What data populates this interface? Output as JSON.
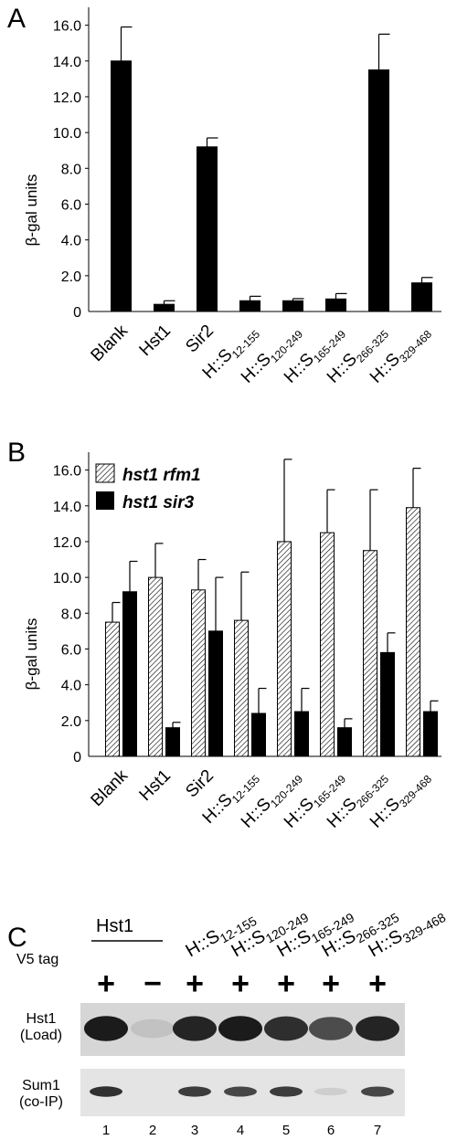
{
  "chart_data": [
    {
      "panel": "A",
      "type": "bar",
      "ylabel": "β-gal units",
      "ylim": [
        0,
        17
      ],
      "yticks": [
        "2.0",
        "4.0",
        "6.0",
        "8.0",
        "10.0",
        "12.0",
        "14.0",
        "16.0"
      ],
      "categories": [
        {
          "main": "Blank",
          "sub": ""
        },
        {
          "main": "Hst1",
          "sub": ""
        },
        {
          "main": "Sir2",
          "sub": ""
        },
        {
          "main": "H::S",
          "sub": "12-155"
        },
        {
          "main": "H::S",
          "sub": "120-249"
        },
        {
          "main": "H::S",
          "sub": "165-249"
        },
        {
          "main": "H::S",
          "sub": "266-325"
        },
        {
          "main": "H::S",
          "sub": "329-468"
        }
      ],
      "values": [
        14.0,
        0.4,
        9.2,
        0.6,
        0.6,
        0.7,
        13.5,
        1.6
      ],
      "errors": [
        1.9,
        0.2,
        0.5,
        0.25,
        0.12,
        0.3,
        2.0,
        0.3
      ]
    },
    {
      "panel": "B",
      "type": "bar",
      "ylabel": "β-gal units",
      "ylim": [
        0,
        17
      ],
      "yticks": [
        "2.0",
        "4.0",
        "6.0",
        "8.0",
        "10.0",
        "12.0",
        "14.0",
        "16.0"
      ],
      "categories": [
        {
          "main": "Blank",
          "sub": ""
        },
        {
          "main": "Hst1",
          "sub": ""
        },
        {
          "main": "Sir2",
          "sub": ""
        },
        {
          "main": "H::S",
          "sub": "12-155"
        },
        {
          "main": "H::S",
          "sub": "120-249"
        },
        {
          "main": "H::S",
          "sub": "165-249"
        },
        {
          "main": "H::S",
          "sub": "266-325"
        },
        {
          "main": "H::S",
          "sub": "329-468"
        }
      ],
      "series": [
        {
          "name": "hst1 rfm1",
          "pattern": "hatched",
          "values": [
            7.5,
            10.0,
            9.3,
            7.6,
            12.0,
            12.5,
            11.5,
            13.9
          ],
          "errors": [
            1.1,
            1.9,
            1.7,
            2.7,
            4.6,
            2.4,
            3.4,
            2.2
          ]
        },
        {
          "name": "hst1 sir3",
          "pattern": "solid",
          "values": [
            9.2,
            1.6,
            7.0,
            2.4,
            2.5,
            1.6,
            5.8,
            2.5
          ],
          "errors": [
            1.7,
            0.3,
            3.0,
            1.4,
            1.3,
            0.5,
            1.1,
            0.6
          ]
        }
      ]
    }
  ],
  "panels": {
    "a_letter": "A",
    "b_letter": "B",
    "c_letter": "C"
  },
  "blot": {
    "group_label": "Hst1",
    "header_labels": [
      {
        "main": "H::S",
        "sub": "12-155"
      },
      {
        "main": "H::S",
        "sub": "120-249"
      },
      {
        "main": "H::S",
        "sub": "165-249"
      },
      {
        "main": "H::S",
        "sub": "266-325"
      },
      {
        "main": "H::S",
        "sub": "329-468"
      }
    ],
    "tag_label": "V5 tag",
    "tag_signs": [
      "+",
      "−",
      "+",
      "+",
      "+",
      "+",
      "+"
    ],
    "row1_label_line1": "Hst1",
    "row1_label_line2": "(Load)",
    "row2_label_line1": "Sum1",
    "row2_label_line2": "(co-IP)",
    "lanes": [
      "1",
      "2",
      "3",
      "4",
      "5",
      "6",
      "7"
    ],
    "load_intensity": [
      0.95,
      0.1,
      0.9,
      0.95,
      0.85,
      0.7,
      0.9
    ],
    "coip_intensity": [
      0.85,
      0.0,
      0.8,
      0.75,
      0.8,
      0.1,
      0.75
    ]
  }
}
